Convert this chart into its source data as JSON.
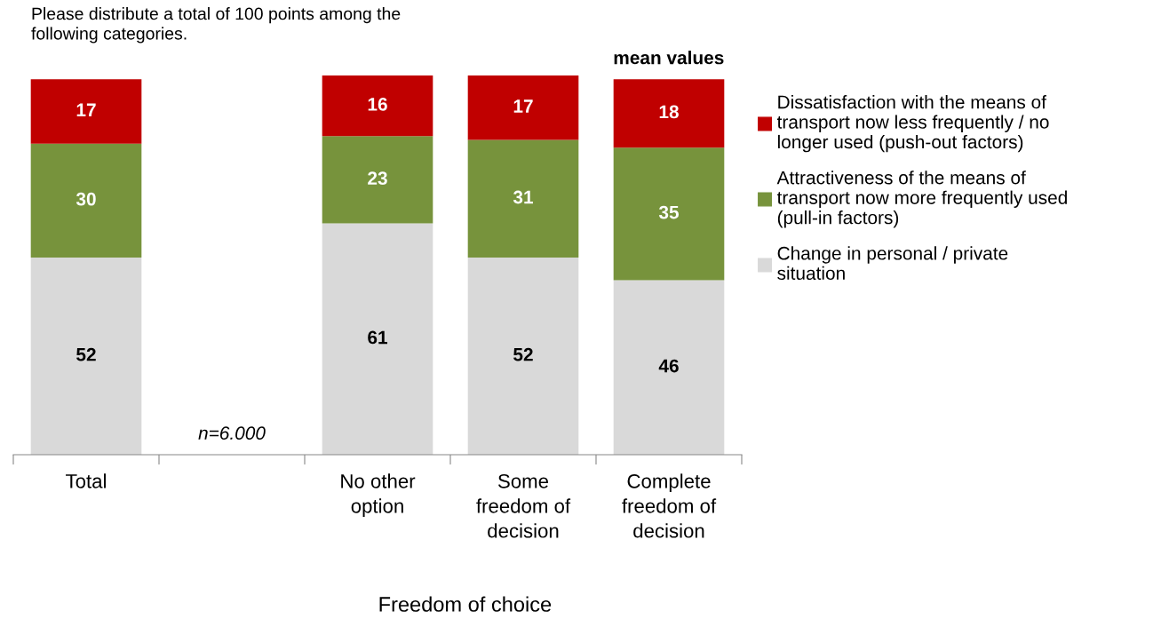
{
  "chart_data": {
    "type": "bar",
    "stacked": true,
    "data_labels": true,
    "legend": "right",
    "grid": false,
    "categories": [
      "Total",
      null,
      "No other option",
      "Some freedom of decision",
      "Complete freedom of decision"
    ],
    "xlabel": "Freedom of choice",
    "annotations": [
      "Please distribute a total of 100 points among the following categories.",
      "mean values",
      "n=6.000"
    ],
    "series": [
      {
        "name": "Change in personal / private situation",
        "color": "#d9d9d9",
        "values": [
          52,
          null,
          61,
          52,
          46
        ]
      },
      {
        "name": "Attractiveness of the means of transport now more frequently used (pull-in factors)",
        "color": "#77933c",
        "values": [
          30,
          null,
          23,
          31,
          35
        ]
      },
      {
        "name": "Dissatisfaction with the means of transport now less frequently / no longer used (push-out factors)",
        "color": "#c00000",
        "values": [
          17,
          null,
          16,
          17,
          18
        ]
      }
    ]
  }
}
